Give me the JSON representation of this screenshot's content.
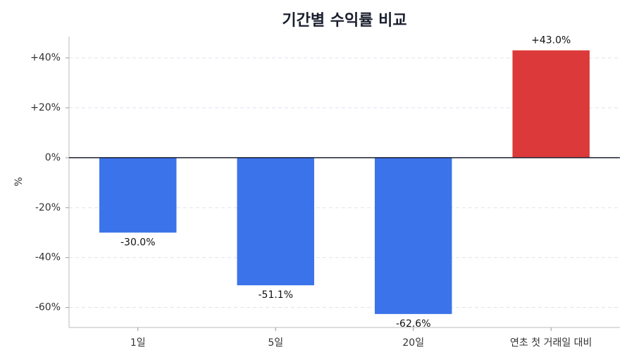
{
  "chart_data": {
    "type": "bar",
    "title": "기간별 수익률 비교",
    "y_label": "%",
    "categories": [
      "1일",
      "5일",
      "20일",
      "연초 첫 거래일 대비"
    ],
    "values": [
      -30.0,
      -51.1,
      -62.6,
      43.0
    ],
    "value_labels": [
      "-30.0%",
      "-51.1%",
      "-62.6%",
      "+43.0%"
    ],
    "colors": [
      "#3b73ea",
      "#3b73ea",
      "#3b73ea",
      "#dc3a3a"
    ],
    "ylim": [
      -68,
      48.5
    ],
    "yticks": [
      {
        "value": -60,
        "label": "-60%"
      },
      {
        "value": -40,
        "label": "-40%"
      },
      {
        "value": -20,
        "label": "-20%"
      },
      {
        "value": 0,
        "label": "0%"
      },
      {
        "value": 20,
        "label": "+20%"
      },
      {
        "value": 40,
        "label": "+40%"
      }
    ],
    "grid": true
  }
}
